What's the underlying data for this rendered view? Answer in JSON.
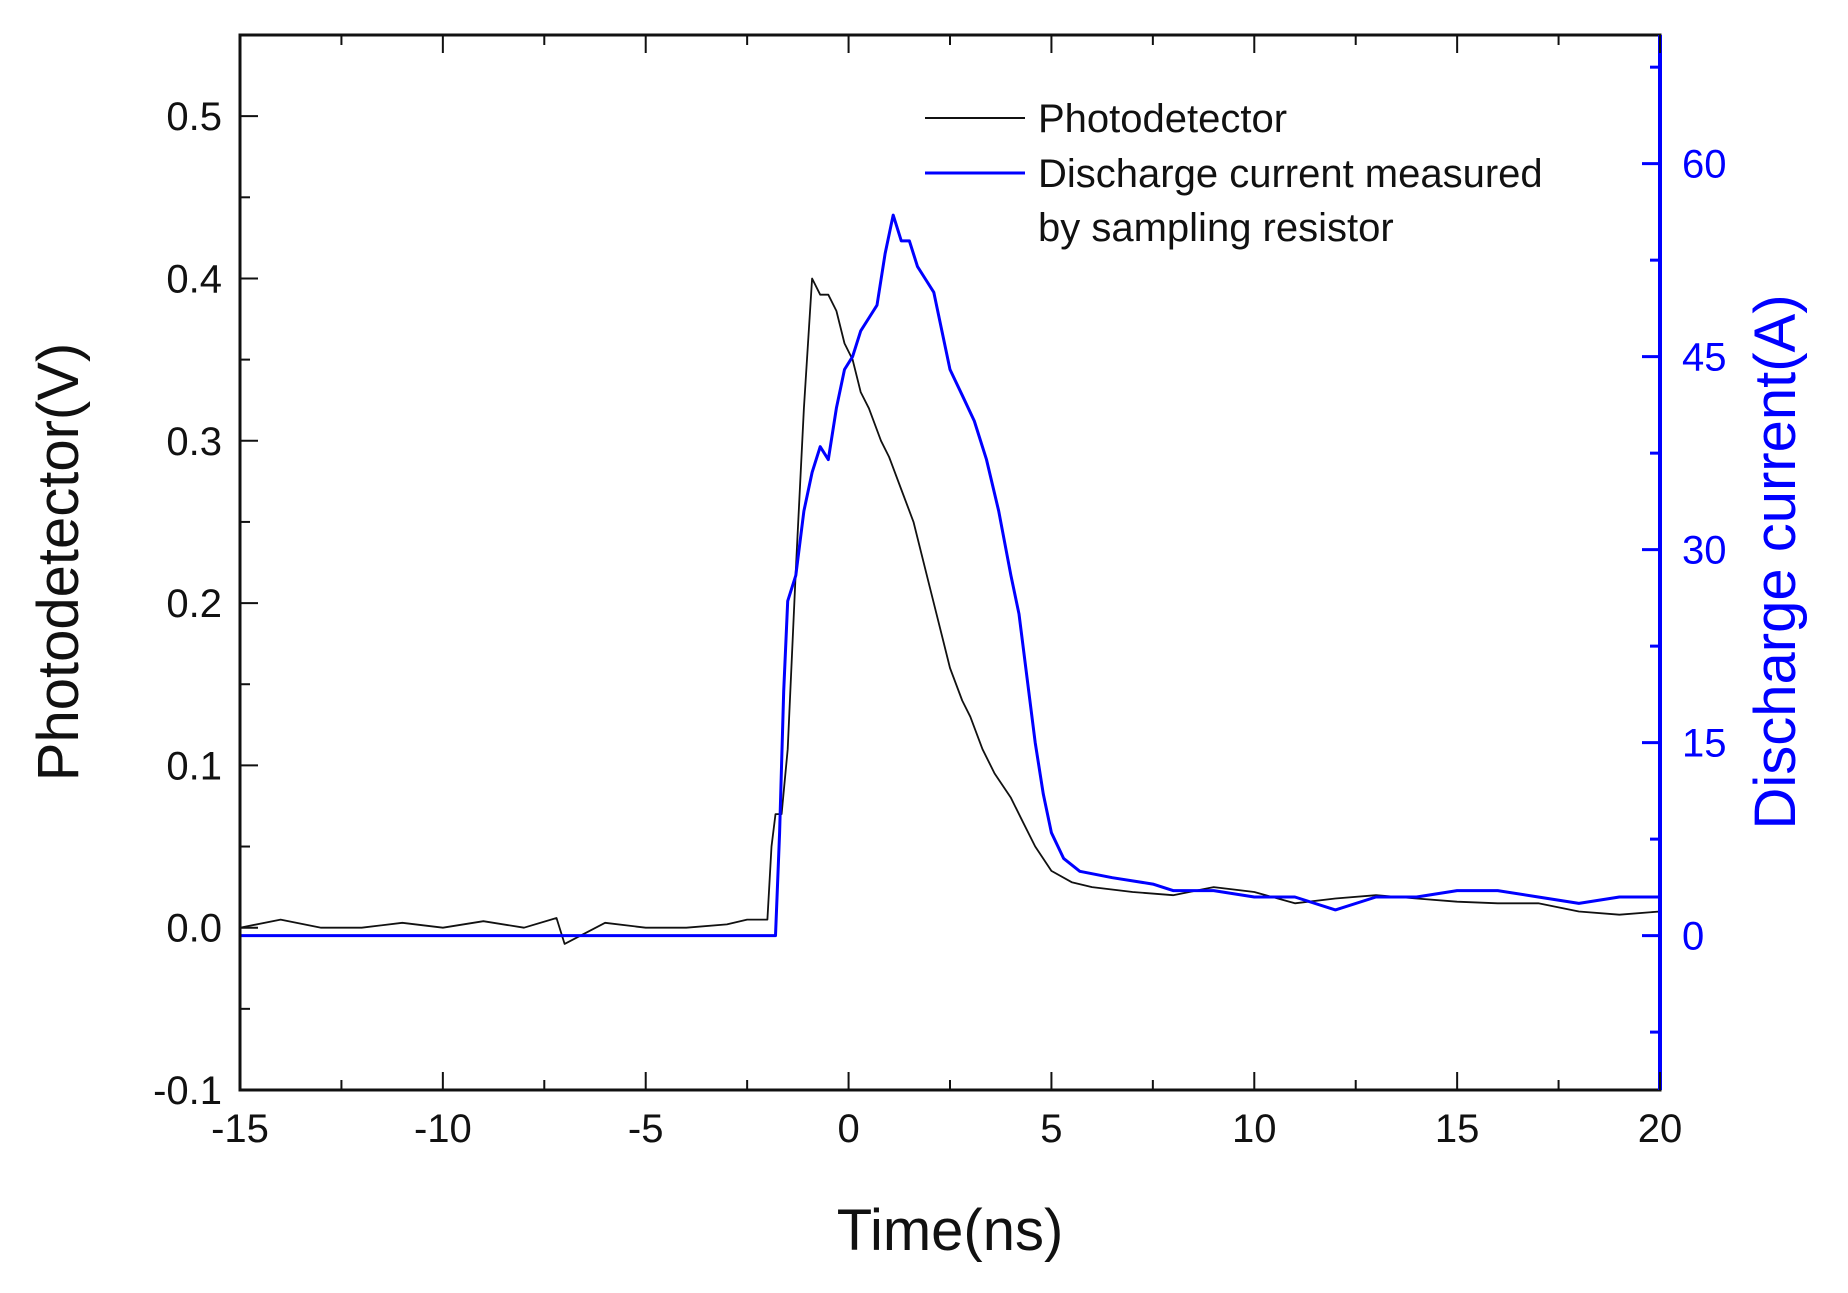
{
  "chart_data": {
    "type": "line",
    "title": "",
    "xlabel": "Time(ns)",
    "ylabel_left": "Photodetector(V)",
    "ylabel_right": "Discharge current(A)",
    "xlim": [
      -15,
      20
    ],
    "ylim_left": [
      -0.1,
      0.55
    ],
    "ylim_right": [
      -12.0,
      70.0
    ],
    "x_ticks": [
      "-15",
      "-10",
      "-5",
      "0",
      "5",
      "10",
      "15",
      "20"
    ],
    "y_left_ticks": [
      "0.5",
      "0.4",
      "0.3",
      "0.2",
      "0.1",
      "0.0",
      "-0.1"
    ],
    "y_right_ticks": [
      "60",
      "45",
      "30",
      "15",
      "0"
    ],
    "grid": false,
    "legend": {
      "position": "top-right",
      "entries": [
        {
          "label_lines": [
            "Photodetector"
          ],
          "color": "#111111"
        },
        {
          "label_lines": [
            "Discharge current measured",
            "by sampling resistor"
          ],
          "color": "#0000ff"
        }
      ]
    },
    "series": [
      {
        "name": "Photodetector",
        "axis": "left",
        "color": "#111111",
        "points": [
          [
            -15,
            0.0
          ],
          [
            -14,
            0.005
          ],
          [
            -13,
            0.0
          ],
          [
            -12,
            0.0
          ],
          [
            -11,
            0.003
          ],
          [
            -10,
            0.0
          ],
          [
            -9,
            0.004
          ],
          [
            -8,
            0.0
          ],
          [
            -7.2,
            0.006
          ],
          [
            -7,
            -0.01
          ],
          [
            -6,
            0.003
          ],
          [
            -5,
            0.0
          ],
          [
            -4,
            0.0
          ],
          [
            -3,
            0.002
          ],
          [
            -2.5,
            0.005
          ],
          [
            -2.0,
            0.005
          ],
          [
            -1.9,
            0.05
          ],
          [
            -1.8,
            0.07
          ],
          [
            -1.65,
            0.07
          ],
          [
            -1.5,
            0.11
          ],
          [
            -1.3,
            0.22
          ],
          [
            -1.1,
            0.32
          ],
          [
            -0.9,
            0.4
          ],
          [
            -0.7,
            0.39
          ],
          [
            -0.5,
            0.39
          ],
          [
            -0.3,
            0.38
          ],
          [
            -0.1,
            0.36
          ],
          [
            0.1,
            0.35
          ],
          [
            0.3,
            0.33
          ],
          [
            0.5,
            0.32
          ],
          [
            0.8,
            0.3
          ],
          [
            1.0,
            0.29
          ],
          [
            1.3,
            0.27
          ],
          [
            1.6,
            0.25
          ],
          [
            1.8,
            0.23
          ],
          [
            2.0,
            0.21
          ],
          [
            2.3,
            0.18
          ],
          [
            2.5,
            0.16
          ],
          [
            2.8,
            0.14
          ],
          [
            3.0,
            0.13
          ],
          [
            3.3,
            0.11
          ],
          [
            3.6,
            0.095
          ],
          [
            4.0,
            0.08
          ],
          [
            4.3,
            0.065
          ],
          [
            4.6,
            0.05
          ],
          [
            5.0,
            0.035
          ],
          [
            5.5,
            0.028
          ],
          [
            6.0,
            0.025
          ],
          [
            7.0,
            0.022
          ],
          [
            8.0,
            0.02
          ],
          [
            9.0,
            0.025
          ],
          [
            10.0,
            0.022
          ],
          [
            11.0,
            0.015
          ],
          [
            12.0,
            0.018
          ],
          [
            13.0,
            0.02
          ],
          [
            14.0,
            0.018
          ],
          [
            15.0,
            0.016
          ],
          [
            16.0,
            0.015
          ],
          [
            17.0,
            0.015
          ],
          [
            18.0,
            0.01
          ],
          [
            19.0,
            0.008
          ],
          [
            20.0,
            0.01
          ]
        ]
      },
      {
        "name": "Discharge current measured by sampling resistor",
        "axis": "right",
        "color": "#0000ff",
        "points": [
          [
            -15,
            0.0
          ],
          [
            -12,
            0.0
          ],
          [
            -9,
            0.0
          ],
          [
            -6,
            0.0
          ],
          [
            -3,
            0.0
          ],
          [
            -2.0,
            0.0
          ],
          [
            -1.8,
            0.0
          ],
          [
            -1.7,
            8.0
          ],
          [
            -1.6,
            19.0
          ],
          [
            -1.5,
            26.0
          ],
          [
            -1.3,
            28.0
          ],
          [
            -1.1,
            33.0
          ],
          [
            -0.9,
            36.0
          ],
          [
            -0.7,
            38.0
          ],
          [
            -0.5,
            37.0
          ],
          [
            -0.3,
            41.0
          ],
          [
            -0.1,
            44.0
          ],
          [
            0.1,
            45.0
          ],
          [
            0.3,
            47.0
          ],
          [
            0.5,
            48.0
          ],
          [
            0.7,
            49.0
          ],
          [
            0.9,
            53.0
          ],
          [
            1.1,
            56.0
          ],
          [
            1.3,
            54.0
          ],
          [
            1.5,
            54.0
          ],
          [
            1.7,
            52.0
          ],
          [
            1.9,
            51.0
          ],
          [
            2.1,
            50.0
          ],
          [
            2.3,
            47.0
          ],
          [
            2.5,
            44.0
          ],
          [
            2.8,
            42.0
          ],
          [
            3.1,
            40.0
          ],
          [
            3.4,
            37.0
          ],
          [
            3.7,
            33.0
          ],
          [
            4.0,
            28.0
          ],
          [
            4.2,
            25.0
          ],
          [
            4.4,
            20.0
          ],
          [
            4.6,
            15.0
          ],
          [
            4.8,
            11.0
          ],
          [
            5.0,
            8.0
          ],
          [
            5.3,
            6.0
          ],
          [
            5.7,
            5.0
          ],
          [
            6.5,
            4.5
          ],
          [
            7.5,
            4.0
          ],
          [
            8.0,
            3.5
          ],
          [
            9.0,
            3.5
          ],
          [
            10.0,
            3.0
          ],
          [
            11.0,
            3.0
          ],
          [
            12.0,
            2.0
          ],
          [
            13.0,
            3.0
          ],
          [
            14.0,
            3.0
          ],
          [
            15.0,
            3.5
          ],
          [
            16.0,
            3.5
          ],
          [
            17.0,
            3.0
          ],
          [
            18.0,
            2.5
          ],
          [
            19.0,
            3.0
          ],
          [
            20.0,
            3.0
          ]
        ]
      }
    ]
  }
}
